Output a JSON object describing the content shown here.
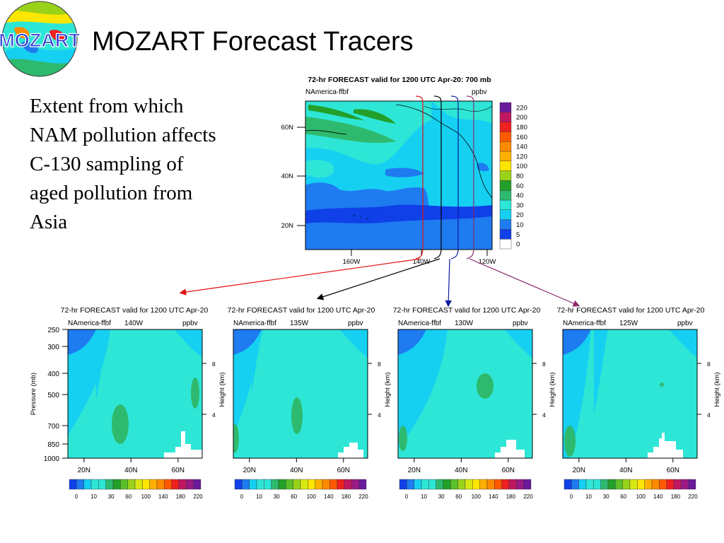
{
  "slide": {
    "title": "MOZART Forecast Tracers",
    "logo_text": "MOZART",
    "caption": "Extent from which NAM pollution affects C-130 sampling of aged pollution from Asia"
  },
  "colors": {
    "bg_pale": "#2ee6d6",
    "bg_cyan": "#16d0f2",
    "bg_blue": "#1e7bf0",
    "green": "#2eba6e",
    "arrow_red": "#e01010",
    "arrow_black": "#000000",
    "arrow_navy": "#0a1aa0",
    "arrow_purple": "#8b2a6e"
  },
  "colorbar": {
    "levels": [
      "0",
      "5",
      "10",
      "20",
      "30",
      "40",
      "60",
      "80",
      "100",
      "120",
      "140",
      "160",
      "180",
      "200",
      "220"
    ],
    "colors": [
      "#ffffff",
      "#1040e8",
      "#1e7bf0",
      "#16d0f2",
      "#2ee6d6",
      "#2eba6e",
      "#22a02a",
      "#9ad21a",
      "#ffe600",
      "#ffb000",
      "#ff8a00",
      "#ff5a00",
      "#ee2020",
      "#c01860",
      "#6a1a9a"
    ],
    "small_labels": [
      "0",
      "10",
      "30",
      "60",
      "100",
      "140",
      "180",
      "220"
    ],
    "small_colors": [
      "#1040e8",
      "#1e7bf0",
      "#16d0f2",
      "#2ee6d6",
      "#2ee6d6",
      "#2eba6e",
      "#22a02a",
      "#5cc02a",
      "#9ad21a",
      "#d8e812",
      "#ffe600",
      "#ffb000",
      "#ff8a00",
      "#ff5a00",
      "#ee2020",
      "#c01860",
      "#9a1a86",
      "#6a1a9a"
    ]
  },
  "map": {
    "title": "72-hr FORECAST valid for 1200 UTC Apr-20: 700 mb",
    "left_label": "NAmerica-ffbf",
    "unit": "ppbv",
    "lat_labels": [
      "60N",
      "40N",
      "20N"
    ],
    "lon_labels": [
      "160W",
      "140W",
      "120W"
    ]
  },
  "panels": [
    {
      "title": "72-hr FORECAST valid for 1200 UTC Apr-20",
      "left_label": "NAmerica-ffbf",
      "lon": "140W",
      "unit": "ppbv",
      "pressure_label": "Pressure (mb)",
      "height_label": "Height (km)",
      "pressure_ticks": [
        "250",
        "300",
        "400",
        "500",
        "700",
        "850",
        "1000"
      ],
      "height_ticks": [
        "8",
        "4"
      ],
      "lat_ticks": [
        "20N",
        "40N",
        "60N"
      ]
    },
    {
      "title": "72-hr FORECAST valid for 1200 UTC Apr-20",
      "left_label": "NAmerica-ffbf",
      "lon": "135W",
      "unit": "ppbv",
      "height_label": "Height (km)",
      "height_ticks": [
        "8",
        "4"
      ],
      "lat_ticks": [
        "20N",
        "40N",
        "60N"
      ]
    },
    {
      "title": "72-hr FORECAST valid for 1200 UTC Apr-20",
      "left_label": "NAmerica-ffbf",
      "lon": "130W",
      "unit": "ppbv",
      "height_label": "Height (km)",
      "height_ticks": [
        "8",
        "4"
      ],
      "lat_ticks": [
        "20N",
        "40N",
        "60N"
      ]
    },
    {
      "title": "72-hr FORECAST valid for 1200 UTC Apr-20",
      "left_label": "NAmerica-ffbf",
      "lon": "125W",
      "unit": "ppbv",
      "height_label": "Height (km)",
      "height_ticks": [
        "8",
        "4"
      ],
      "lat_ticks": [
        "20N",
        "40N",
        "60N"
      ]
    }
  ],
  "chart_data": [
    {
      "type": "heatmap",
      "title": "72-hr FORECAST valid for 1200 UTC Apr-20: 700 mb",
      "subtitle": "NAmerica-ffbf",
      "unit": "ppbv",
      "x_ticks": [
        "160W",
        "140W",
        "120W"
      ],
      "y_ticks": [
        "60N",
        "40N",
        "20N"
      ],
      "legend_levels": [
        0,
        5,
        10,
        20,
        30,
        40,
        60,
        80,
        100,
        120,
        140,
        160,
        180,
        200,
        220
      ],
      "cross_section_lons": [
        "140W",
        "135W",
        "130W",
        "125W"
      ]
    },
    {
      "type": "heatmap",
      "title": "72-hr FORECAST valid for 1200 UTC Apr-20",
      "subtitle": "NAmerica-ffbf 140W",
      "unit": "ppbv",
      "x_ticks": [
        "20N",
        "40N",
        "60N"
      ],
      "y_ticks": [
        250,
        300,
        400,
        500,
        700,
        850,
        1000
      ],
      "ylabel": "Pressure (mb)",
      "y2label": "Height (km)",
      "y2_ticks": [
        8,
        4
      ]
    },
    {
      "type": "heatmap",
      "title": "72-hr FORECAST valid for 1200 UTC Apr-20",
      "subtitle": "NAmerica-ffbf 135W",
      "unit": "ppbv",
      "x_ticks": [
        "20N",
        "40N",
        "60N"
      ],
      "y2label": "Height (km)",
      "y2_ticks": [
        8,
        4
      ]
    },
    {
      "type": "heatmap",
      "title": "72-hr FORECAST valid for 1200 UTC Apr-20",
      "subtitle": "NAmerica-ffbf 130W",
      "unit": "ppbv",
      "x_ticks": [
        "20N",
        "40N",
        "60N"
      ],
      "y2label": "Height (km)",
      "y2_ticks": [
        8,
        4
      ]
    },
    {
      "type": "heatmap",
      "title": "72-hr FORECAST valid for 1200 UTC Apr-20",
      "subtitle": "NAmerica-ffbf 125W",
      "unit": "ppbv",
      "x_ticks": [
        "20N",
        "40N",
        "60N"
      ],
      "y2label": "Height (km)",
      "y2_ticks": [
        8,
        4
      ]
    }
  ]
}
